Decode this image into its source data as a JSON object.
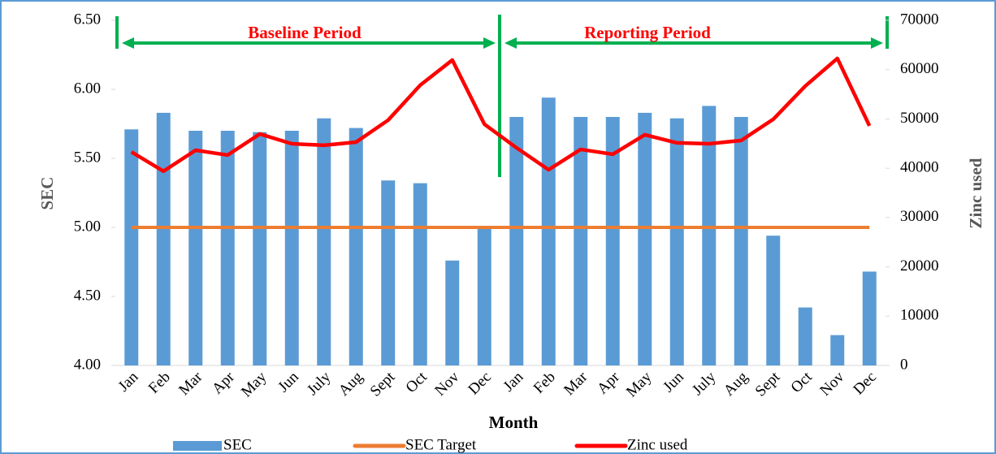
{
  "chart_data": {
    "type": "bar_line",
    "x_label": "Month",
    "y_label": "SEC",
    "y2_label": "Zinc used",
    "annotations": [
      "Baseline Period",
      "Reporting Period"
    ],
    "categories": [
      "Jan",
      "Feb",
      "Mar",
      "Apr",
      "May",
      "Jun",
      "July",
      "Aug",
      "Sept",
      "Oct",
      "Nov",
      "Dec",
      "Jan",
      "Feb",
      "Mar",
      "Apr",
      "May",
      "Jun",
      "July",
      "Aug",
      "Sept",
      "Oct",
      "Nov",
      "Dec"
    ],
    "series": [
      {
        "name": "SEC",
        "type": "bar",
        "color": "#5b9bd5",
        "axis": "y",
        "values": [
          5.71,
          5.83,
          5.7,
          5.7,
          5.69,
          5.7,
          5.79,
          5.72,
          5.34,
          5.32,
          4.76,
          5.0,
          5.8,
          5.94,
          5.8,
          5.8,
          5.83,
          5.79,
          5.88,
          5.8,
          4.94,
          4.42,
          4.22,
          4.68
        ]
      },
      {
        "name": "SEC Target",
        "type": "line",
        "color": "#ed7d31",
        "axis": "y",
        "values": [
          5,
          5,
          5,
          5,
          5,
          5,
          5,
          5,
          5,
          5,
          5,
          5,
          5,
          5,
          5,
          5,
          5,
          5,
          5,
          5,
          5,
          5,
          5,
          5
        ]
      },
      {
        "name": "Zinc used",
        "type": "line",
        "color": "#ff0000",
        "axis": "y2",
        "values": [
          43300,
          39400,
          43650,
          42670,
          46950,
          44970,
          44650,
          45300,
          49750,
          56840,
          61940,
          48930,
          44150,
          39700,
          43820,
          42830,
          46790,
          45140,
          44970,
          45630,
          49920,
          56670,
          62270,
          48600
        ]
      }
    ],
    "ylim": [
      4,
      6.5
    ],
    "yticks": [
      {
        "value": 4,
        "label": "4.00"
      },
      {
        "value": 4.5,
        "label": "4.50"
      },
      {
        "value": 5,
        "label": "5.00"
      },
      {
        "value": 5.5,
        "label": "5.50"
      },
      {
        "value": 6,
        "label": "6.00"
      },
      {
        "value": 6.5,
        "label": "6.50"
      }
    ],
    "y2lim": [
      0,
      70000
    ],
    "y2ticks": [
      0,
      10000,
      20000,
      30000,
      40000,
      50000,
      60000,
      70000
    ],
    "legend": "bottom"
  }
}
